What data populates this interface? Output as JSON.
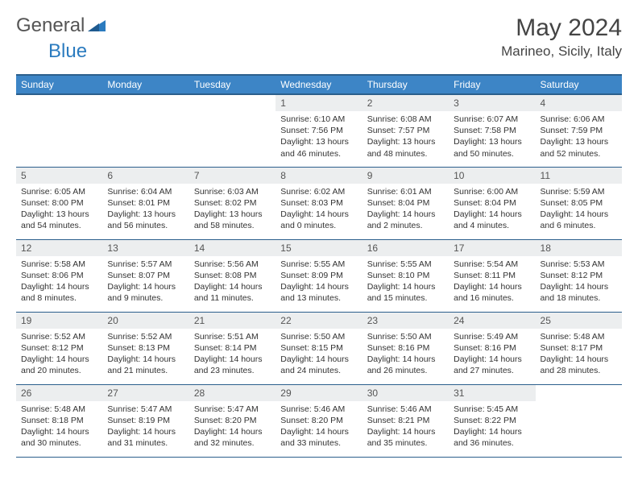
{
  "logo": {
    "text1": "General",
    "text2": "Blue"
  },
  "header": {
    "title": "May 2024",
    "location": "Marineo, Sicily, Italy"
  },
  "colors": {
    "header_bg": "#3d85c6",
    "header_border": "#2b5f8c",
    "daynum_bg": "#eceeef",
    "logo_blue": "#2b7bbf"
  },
  "weekdays": [
    "Sunday",
    "Monday",
    "Tuesday",
    "Wednesday",
    "Thursday",
    "Friday",
    "Saturday"
  ],
  "weeks": [
    [
      {
        "n": "",
        "sr": "",
        "ss": "",
        "dl1": "",
        "dl2": ""
      },
      {
        "n": "",
        "sr": "",
        "ss": "",
        "dl1": "",
        "dl2": ""
      },
      {
        "n": "",
        "sr": "",
        "ss": "",
        "dl1": "",
        "dl2": ""
      },
      {
        "n": "1",
        "sr": "Sunrise: 6:10 AM",
        "ss": "Sunset: 7:56 PM",
        "dl1": "Daylight: 13 hours",
        "dl2": "and 46 minutes."
      },
      {
        "n": "2",
        "sr": "Sunrise: 6:08 AM",
        "ss": "Sunset: 7:57 PM",
        "dl1": "Daylight: 13 hours",
        "dl2": "and 48 minutes."
      },
      {
        "n": "3",
        "sr": "Sunrise: 6:07 AM",
        "ss": "Sunset: 7:58 PM",
        "dl1": "Daylight: 13 hours",
        "dl2": "and 50 minutes."
      },
      {
        "n": "4",
        "sr": "Sunrise: 6:06 AM",
        "ss": "Sunset: 7:59 PM",
        "dl1": "Daylight: 13 hours",
        "dl2": "and 52 minutes."
      }
    ],
    [
      {
        "n": "5",
        "sr": "Sunrise: 6:05 AM",
        "ss": "Sunset: 8:00 PM",
        "dl1": "Daylight: 13 hours",
        "dl2": "and 54 minutes."
      },
      {
        "n": "6",
        "sr": "Sunrise: 6:04 AM",
        "ss": "Sunset: 8:01 PM",
        "dl1": "Daylight: 13 hours",
        "dl2": "and 56 minutes."
      },
      {
        "n": "7",
        "sr": "Sunrise: 6:03 AM",
        "ss": "Sunset: 8:02 PM",
        "dl1": "Daylight: 13 hours",
        "dl2": "and 58 minutes."
      },
      {
        "n": "8",
        "sr": "Sunrise: 6:02 AM",
        "ss": "Sunset: 8:03 PM",
        "dl1": "Daylight: 14 hours",
        "dl2": "and 0 minutes."
      },
      {
        "n": "9",
        "sr": "Sunrise: 6:01 AM",
        "ss": "Sunset: 8:04 PM",
        "dl1": "Daylight: 14 hours",
        "dl2": "and 2 minutes."
      },
      {
        "n": "10",
        "sr": "Sunrise: 6:00 AM",
        "ss": "Sunset: 8:04 PM",
        "dl1": "Daylight: 14 hours",
        "dl2": "and 4 minutes."
      },
      {
        "n": "11",
        "sr": "Sunrise: 5:59 AM",
        "ss": "Sunset: 8:05 PM",
        "dl1": "Daylight: 14 hours",
        "dl2": "and 6 minutes."
      }
    ],
    [
      {
        "n": "12",
        "sr": "Sunrise: 5:58 AM",
        "ss": "Sunset: 8:06 PM",
        "dl1": "Daylight: 14 hours",
        "dl2": "and 8 minutes."
      },
      {
        "n": "13",
        "sr": "Sunrise: 5:57 AM",
        "ss": "Sunset: 8:07 PM",
        "dl1": "Daylight: 14 hours",
        "dl2": "and 9 minutes."
      },
      {
        "n": "14",
        "sr": "Sunrise: 5:56 AM",
        "ss": "Sunset: 8:08 PM",
        "dl1": "Daylight: 14 hours",
        "dl2": "and 11 minutes."
      },
      {
        "n": "15",
        "sr": "Sunrise: 5:55 AM",
        "ss": "Sunset: 8:09 PM",
        "dl1": "Daylight: 14 hours",
        "dl2": "and 13 minutes."
      },
      {
        "n": "16",
        "sr": "Sunrise: 5:55 AM",
        "ss": "Sunset: 8:10 PM",
        "dl1": "Daylight: 14 hours",
        "dl2": "and 15 minutes."
      },
      {
        "n": "17",
        "sr": "Sunrise: 5:54 AM",
        "ss": "Sunset: 8:11 PM",
        "dl1": "Daylight: 14 hours",
        "dl2": "and 16 minutes."
      },
      {
        "n": "18",
        "sr": "Sunrise: 5:53 AM",
        "ss": "Sunset: 8:12 PM",
        "dl1": "Daylight: 14 hours",
        "dl2": "and 18 minutes."
      }
    ],
    [
      {
        "n": "19",
        "sr": "Sunrise: 5:52 AM",
        "ss": "Sunset: 8:12 PM",
        "dl1": "Daylight: 14 hours",
        "dl2": "and 20 minutes."
      },
      {
        "n": "20",
        "sr": "Sunrise: 5:52 AM",
        "ss": "Sunset: 8:13 PM",
        "dl1": "Daylight: 14 hours",
        "dl2": "and 21 minutes."
      },
      {
        "n": "21",
        "sr": "Sunrise: 5:51 AM",
        "ss": "Sunset: 8:14 PM",
        "dl1": "Daylight: 14 hours",
        "dl2": "and 23 minutes."
      },
      {
        "n": "22",
        "sr": "Sunrise: 5:50 AM",
        "ss": "Sunset: 8:15 PM",
        "dl1": "Daylight: 14 hours",
        "dl2": "and 24 minutes."
      },
      {
        "n": "23",
        "sr": "Sunrise: 5:50 AM",
        "ss": "Sunset: 8:16 PM",
        "dl1": "Daylight: 14 hours",
        "dl2": "and 26 minutes."
      },
      {
        "n": "24",
        "sr": "Sunrise: 5:49 AM",
        "ss": "Sunset: 8:16 PM",
        "dl1": "Daylight: 14 hours",
        "dl2": "and 27 minutes."
      },
      {
        "n": "25",
        "sr": "Sunrise: 5:48 AM",
        "ss": "Sunset: 8:17 PM",
        "dl1": "Daylight: 14 hours",
        "dl2": "and 28 minutes."
      }
    ],
    [
      {
        "n": "26",
        "sr": "Sunrise: 5:48 AM",
        "ss": "Sunset: 8:18 PM",
        "dl1": "Daylight: 14 hours",
        "dl2": "and 30 minutes."
      },
      {
        "n": "27",
        "sr": "Sunrise: 5:47 AM",
        "ss": "Sunset: 8:19 PM",
        "dl1": "Daylight: 14 hours",
        "dl2": "and 31 minutes."
      },
      {
        "n": "28",
        "sr": "Sunrise: 5:47 AM",
        "ss": "Sunset: 8:20 PM",
        "dl1": "Daylight: 14 hours",
        "dl2": "and 32 minutes."
      },
      {
        "n": "29",
        "sr": "Sunrise: 5:46 AM",
        "ss": "Sunset: 8:20 PM",
        "dl1": "Daylight: 14 hours",
        "dl2": "and 33 minutes."
      },
      {
        "n": "30",
        "sr": "Sunrise: 5:46 AM",
        "ss": "Sunset: 8:21 PM",
        "dl1": "Daylight: 14 hours",
        "dl2": "and 35 minutes."
      },
      {
        "n": "31",
        "sr": "Sunrise: 5:45 AM",
        "ss": "Sunset: 8:22 PM",
        "dl1": "Daylight: 14 hours",
        "dl2": "and 36 minutes."
      },
      {
        "n": "",
        "sr": "",
        "ss": "",
        "dl1": "",
        "dl2": ""
      }
    ]
  ]
}
